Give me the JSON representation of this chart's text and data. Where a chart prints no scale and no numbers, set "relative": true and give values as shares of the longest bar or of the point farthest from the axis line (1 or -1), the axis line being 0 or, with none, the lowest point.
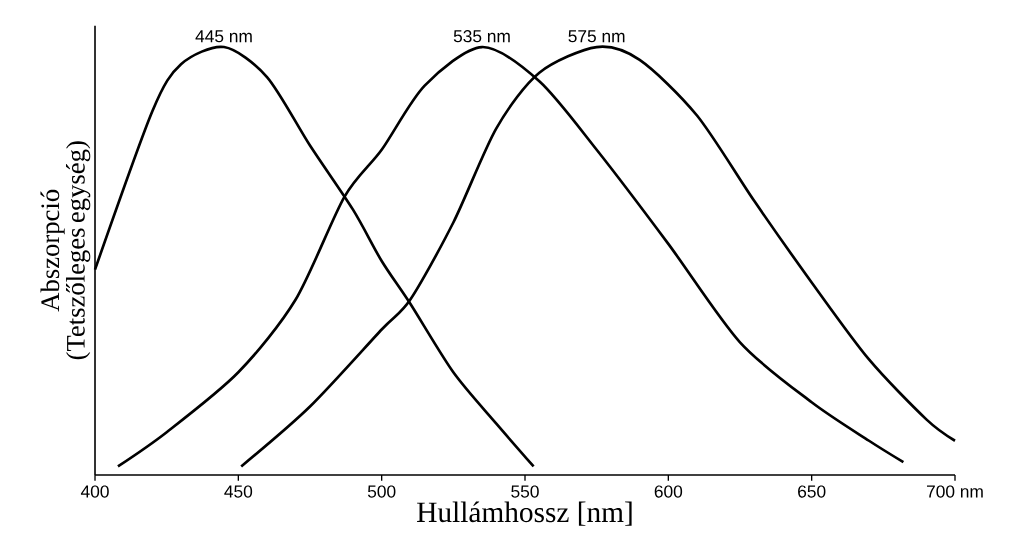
{
  "chart_data": {
    "type": "line",
    "relative": true,
    "xlabel": "Hullámhossz [nm]",
    "ylabel": "Abszorpció (Tetszőleges egység)",
    "xlim": [
      400,
      700
    ],
    "xticks": [
      400,
      450,
      500,
      550,
      600,
      650,
      {
        "value": 700,
        "label": "700 nm"
      }
    ],
    "series": [
      {
        "color": "#000000",
        "x": [
          400,
          420,
          430,
          445,
          460,
          475,
          490,
          500,
          510,
          525,
          540,
          553
        ],
        "values": [
          0.48,
          0.85,
          0.96,
          1,
          0.93,
          0.77,
          0.62,
          0.5,
          0.4,
          0.24,
          0.12,
          0.02
        ]
      },
      {
        "color": "#000000",
        "x": [
          408,
          425,
          450,
          470,
          487,
          500,
          515,
          535,
          555,
          575,
          600,
          625,
          650,
          670,
          682
        ],
        "values": [
          0.02,
          0.1,
          0.24,
          0.41,
          0.65,
          0.76,
          0.91,
          1,
          0.92,
          0.76,
          0.54,
          0.31,
          0.17,
          0.08,
          0.03
        ]
      },
      {
        "color": "#000000",
        "x": [
          451,
          475,
          500,
          510,
          525,
          540,
          555,
          575,
          590,
          610,
          630,
          650,
          670,
          690,
          700
        ],
        "values": [
          0.02,
          0.16,
          0.34,
          0.41,
          0.59,
          0.81,
          0.94,
          1,
          0.97,
          0.84,
          0.64,
          0.45,
          0.27,
          0.13,
          0.08
        ]
      }
    ],
    "annotations": [
      {
        "text": "445 nm",
        "x": 445,
        "y": 1
      },
      {
        "text": "535 nm",
        "x": 535,
        "y": 1
      },
      {
        "text": "575 nm",
        "x": 575,
        "y": 1
      }
    ]
  }
}
